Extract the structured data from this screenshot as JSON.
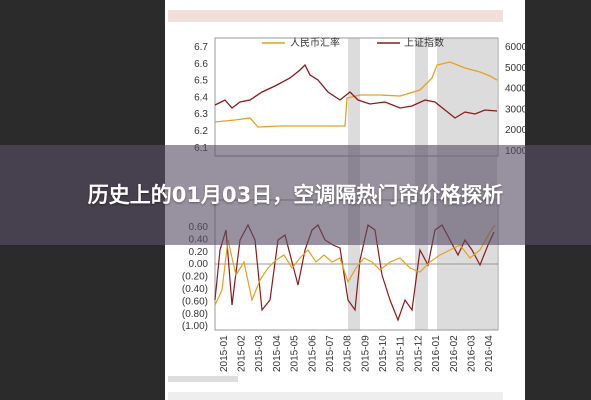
{
  "title": "历史上的01月03日，空调隔热门帘价格探析",
  "chart_image": {
    "legend": [
      "人民币汇率",
      "上证指数"
    ],
    "left_ticks": [
      "6.7",
      "6.6",
      "6.5",
      "6.4",
      "6.3",
      "6.2",
      "6.1"
    ],
    "right_ticks": [
      "6000",
      "5000",
      "4000",
      "3000",
      "2000",
      "1000"
    ],
    "lower_ticks": [
      "0.60",
      "0.40",
      "0.20",
      "0.00",
      "(0.20)",
      "(0.40)",
      "(0.60)",
      "(0.80)",
      "(1.00)"
    ],
    "x_labels": [
      "2015-01",
      "2015-02",
      "2015-03",
      "2015-04",
      "2015-05",
      "2015-06",
      "2015-07",
      "2015-08",
      "2015-09",
      "2015-10",
      "2015-11",
      "2015-12",
      "2016-01",
      "2016-02",
      "2016-03",
      "2016-04"
    ]
  }
}
